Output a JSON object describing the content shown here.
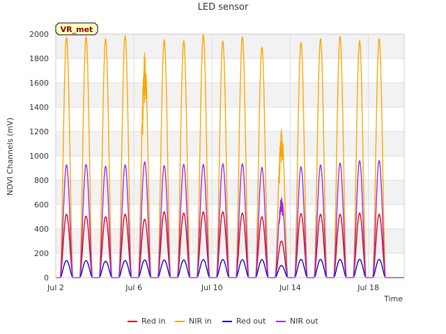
{
  "chart_data": {
    "type": "line",
    "title": "LED sensor",
    "xlabel": "Time",
    "ylabel": "NDVI Channels (mV)",
    "badge": "VR_met",
    "ylim": [
      0,
      2000
    ],
    "yticks": [
      0,
      200,
      400,
      600,
      800,
      1000,
      1200,
      1400,
      1600,
      1800,
      2000
    ],
    "xlim": [
      "2024-07-02",
      "2024-07-19 20:00"
    ],
    "xticks": [
      {
        "date": "2024-07-02",
        "label": "Jul 2"
      },
      {
        "date": "2024-07-06",
        "label": "Jul 6"
      },
      {
        "date": "2024-07-10",
        "label": "Jul 10"
      },
      {
        "date": "2024-07-14",
        "label": "Jul 14"
      },
      {
        "date": "2024-07-18",
        "label": "Jul 18"
      }
    ],
    "grid": true,
    "legend_position": "bottom",
    "days": [
      "2024-07-02",
      "2024-07-03",
      "2024-07-04",
      "2024-07-05",
      "2024-07-06",
      "2024-07-07",
      "2024-07-08",
      "2024-07-09",
      "2024-07-10",
      "2024-07-11",
      "2024-07-12",
      "2024-07-13",
      "2024-07-14",
      "2024-07-15",
      "2024-07-16",
      "2024-07-17",
      "2024-07-18",
      "2024-07-19"
    ],
    "series": [
      {
        "name": "Red in",
        "color": "#dd0000",
        "daily_peak": [
          520,
          505,
          500,
          520,
          480,
          540,
          530,
          540,
          540,
          530,
          500,
          300,
          525,
          520,
          520,
          530,
          520,
          0
        ]
      },
      {
        "name": "NIR in",
        "color": "#ffa500",
        "daily_peak": [
          1970,
          1975,
          1960,
          1985,
          1850,
          1950,
          1945,
          1995,
          1940,
          1975,
          1890,
          1220,
          1930,
          1960,
          1980,
          1945,
          1960,
          0
        ]
      },
      {
        "name": "Red out",
        "color": "#0000cc",
        "daily_peak": [
          140,
          140,
          135,
          140,
          145,
          145,
          145,
          148,
          148,
          148,
          148,
          100,
          150,
          150,
          150,
          150,
          150,
          0
        ]
      },
      {
        "name": "NIR out",
        "color": "#9a2be2",
        "daily_peak": [
          925,
          930,
          915,
          925,
          950,
          920,
          930,
          930,
          935,
          935,
          905,
          660,
          910,
          925,
          940,
          960,
          960,
          0
        ]
      }
    ]
  }
}
